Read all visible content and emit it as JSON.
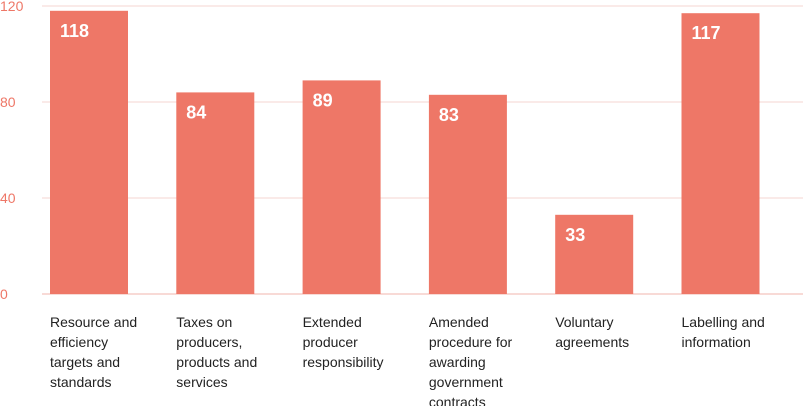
{
  "colors": {
    "bar": "#ee7767",
    "tick_text": "#ee7767",
    "grid": "#f6d5d0",
    "baseline": "#f2b5ac",
    "category_text": "#222222",
    "value_text": "#ffffff"
  },
  "chart_data": {
    "type": "bar",
    "title": "",
    "xlabel": "",
    "ylabel": "",
    "ylim": [
      0,
      120
    ],
    "yticks": [
      0,
      40,
      80,
      120
    ],
    "grid": true,
    "categories": [
      [
        "Resource and",
        "efficiency",
        "targets and",
        "standards"
      ],
      [
        "Taxes on",
        "producers,",
        "products and",
        "services"
      ],
      [
        "Extended",
        "producer",
        "responsibility"
      ],
      [
        "Amended",
        "procedure for",
        "awarding",
        "government",
        "contracts"
      ],
      [
        "Voluntary",
        "agreements"
      ],
      [
        "Labelling and",
        "information"
      ]
    ],
    "values": [
      118,
      84,
      89,
      83,
      33,
      117
    ]
  }
}
